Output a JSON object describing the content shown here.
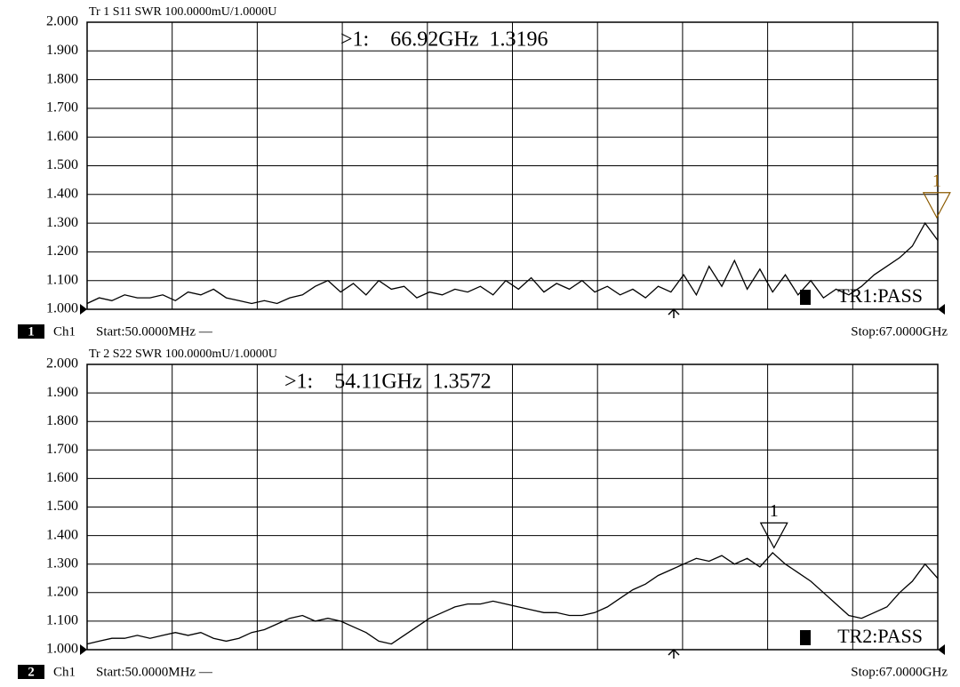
{
  "chart_data": [
    {
      "type": "line",
      "header": "Tr 1  S11 SWR 100.0000mU/1.0000U",
      "marker_readout": ">1:    66.92GHz  1.3196",
      "limit_status": "TR1:PASS",
      "channel_number": "1",
      "channel": "Ch1",
      "start": "Start:50.0000MHz —",
      "stop": "Stop:67.0000GHz",
      "xlim": [
        0.05,
        67
      ],
      "ylim": [
        1,
        2
      ],
      "yticks": [
        {
          "value": 1,
          "label": "1.000"
        },
        {
          "value": 1.1,
          "label": "1.100"
        },
        {
          "value": 1.2,
          "label": "1.200"
        },
        {
          "value": 1.3,
          "label": "1.300"
        },
        {
          "value": 1.4,
          "label": "1.400"
        },
        {
          "value": 1.5,
          "label": "1.500"
        },
        {
          "value": 1.6,
          "label": "1.600"
        },
        {
          "value": 1.7,
          "label": "1.700"
        },
        {
          "value": 1.8,
          "label": "1.800"
        },
        {
          "value": 1.9,
          "label": "1.900"
        },
        {
          "value": 2,
          "label": "2.000"
        }
      ],
      "grid": true,
      "x": [
        0.05,
        1,
        2,
        3,
        4,
        5,
        6,
        7,
        8,
        9,
        10,
        11,
        12,
        13,
        14,
        15,
        16,
        17,
        18,
        19,
        20,
        21,
        22,
        23,
        24,
        25,
        26,
        27,
        28,
        29,
        30,
        31,
        32,
        33,
        34,
        35,
        36,
        37,
        38,
        39,
        40,
        41,
        42,
        43,
        44,
        45,
        46,
        47,
        48,
        49,
        50,
        51,
        52,
        53,
        54,
        55,
        56,
        57,
        58,
        59,
        60,
        61,
        62,
        63,
        64,
        65,
        66,
        67
      ],
      "series": [
        {
          "color": "#000000",
          "values": [
            1.02,
            1.04,
            1.03,
            1.05,
            1.04,
            1.04,
            1.05,
            1.03,
            1.06,
            1.05,
            1.07,
            1.04,
            1.03,
            1.02,
            1.03,
            1.02,
            1.04,
            1.05,
            1.08,
            1.1,
            1.06,
            1.09,
            1.05,
            1.1,
            1.07,
            1.08,
            1.04,
            1.06,
            1.05,
            1.07,
            1.06,
            1.08,
            1.05,
            1.1,
            1.07,
            1.11,
            1.06,
            1.09,
            1.07,
            1.1,
            1.06,
            1.08,
            1.05,
            1.07,
            1.04,
            1.08,
            1.06,
            1.12,
            1.05,
            1.15,
            1.08,
            1.17,
            1.07,
            1.14,
            1.06,
            1.12,
            1.05,
            1.1,
            1.04,
            1.07,
            1.05,
            1.08,
            1.12,
            1.15,
            1.18,
            1.22,
            1.3,
            1.24
          ]
        }
      ],
      "markers": [
        {
          "label": "1",
          "x": 66.92,
          "y": 1.3196,
          "color": "#8b5a00"
        }
      ]
    },
    {
      "type": "line",
      "header": "Tr 2  S22 SWR 100.0000mU/1.0000U",
      "marker_readout": ">1:    54.11GHz  1.3572",
      "limit_status": "TR2:PASS",
      "channel_number": "2",
      "channel": "Ch1",
      "start": "Start:50.0000MHz —",
      "stop": "Stop:67.0000GHz",
      "xlim": [
        0.05,
        67
      ],
      "ylim": [
        1,
        2
      ],
      "yticks": [
        {
          "value": 1,
          "label": "1.000"
        },
        {
          "value": 1.1,
          "label": "1.100"
        },
        {
          "value": 1.2,
          "label": "1.200"
        },
        {
          "value": 1.3,
          "label": "1.300"
        },
        {
          "value": 1.4,
          "label": "1.400"
        },
        {
          "value": 1.5,
          "label": "1.500"
        },
        {
          "value": 1.6,
          "label": "1.600"
        },
        {
          "value": 1.7,
          "label": "1.700"
        },
        {
          "value": 1.8,
          "label": "1.800"
        },
        {
          "value": 1.9,
          "label": "1.900"
        },
        {
          "value": 2,
          "label": "2.000"
        }
      ],
      "grid": true,
      "x": [
        0.05,
        1,
        2,
        3,
        4,
        5,
        6,
        7,
        8,
        9,
        10,
        11,
        12,
        13,
        14,
        15,
        16,
        17,
        18,
        19,
        20,
        21,
        22,
        23,
        24,
        25,
        26,
        27,
        28,
        29,
        30,
        31,
        32,
        33,
        34,
        35,
        36,
        37,
        38,
        39,
        40,
        41,
        42,
        43,
        44,
        45,
        46,
        47,
        48,
        49,
        50,
        51,
        52,
        53,
        54,
        55,
        56,
        57,
        58,
        59,
        60,
        61,
        62,
        63,
        64,
        65,
        66,
        67
      ],
      "series": [
        {
          "color": "#000000",
          "values": [
            1.02,
            1.03,
            1.04,
            1.04,
            1.05,
            1.04,
            1.05,
            1.06,
            1.05,
            1.06,
            1.04,
            1.03,
            1.04,
            1.06,
            1.07,
            1.09,
            1.11,
            1.12,
            1.1,
            1.11,
            1.1,
            1.08,
            1.06,
            1.03,
            1.02,
            1.05,
            1.08,
            1.11,
            1.13,
            1.15,
            1.16,
            1.16,
            1.17,
            1.16,
            1.15,
            1.14,
            1.13,
            1.13,
            1.12,
            1.12,
            1.13,
            1.15,
            1.18,
            1.21,
            1.23,
            1.26,
            1.28,
            1.3,
            1.32,
            1.31,
            1.33,
            1.3,
            1.32,
            1.29,
            1.34,
            1.3,
            1.27,
            1.24,
            1.2,
            1.16,
            1.12,
            1.11,
            1.13,
            1.15,
            1.2,
            1.24,
            1.3,
            1.25
          ]
        }
      ],
      "markers": [
        {
          "label": "1",
          "x": 54.11,
          "y": 1.3572,
          "color": "#000000"
        }
      ]
    }
  ]
}
